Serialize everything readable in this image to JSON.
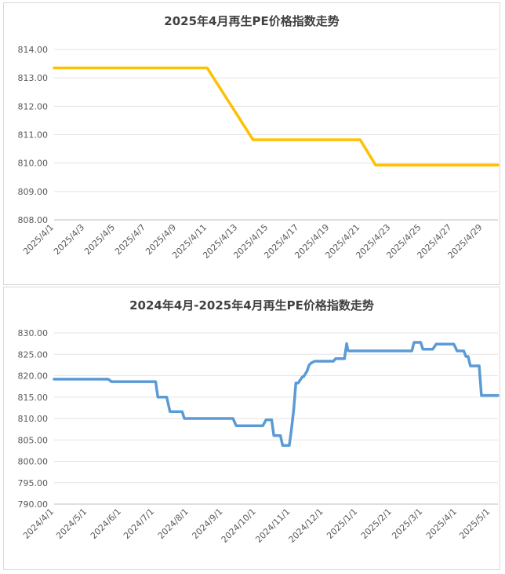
{
  "chart_data": [
    {
      "type": "line",
      "title": "2025年4月再生PE价格指数走势",
      "xlabel": "",
      "ylabel": "",
      "ylim": [
        808,
        814
      ],
      "yticks": [
        "808.00",
        "809.00",
        "810.00",
        "811.00",
        "812.00",
        "813.00",
        "814.00"
      ],
      "xtick_labels": [
        "2025/4/1",
        "2025/4/3",
        "2025/4/5",
        "2025/4/7",
        "2025/4/9",
        "2025/4/11",
        "2025/4/13",
        "2025/4/15",
        "2025/4/17",
        "2025/4/19",
        "2025/4/21",
        "2025/4/23",
        "2025/4/25",
        "2025/4/27",
        "2025/4/29"
      ],
      "x": [
        "2025/4/1",
        "2025/4/11",
        "2025/4/14",
        "2025/4/21",
        "2025/4/22",
        "2025/4/30"
      ],
      "series": [
        {
          "values": [
            813.35,
            813.35,
            810.82,
            810.82,
            809.93,
            809.93
          ]
        }
      ],
      "color": "#FFC000",
      "grid": true,
      "legend": "none"
    },
    {
      "type": "line",
      "title": "2024年4月-2025年4月再生PE价格指数走势",
      "xlabel": "",
      "ylabel": "",
      "ylim": [
        790,
        830
      ],
      "yticks": [
        "790.00",
        "795.00",
        "800.00",
        "805.00",
        "810.00",
        "815.00",
        "820.00",
        "825.00",
        "830.00"
      ],
      "xtick_labels": [
        "2024/4/1",
        "2024/5/1",
        "2024/6/1",
        "2024/7/1",
        "2024/8/1",
        "2024/9/1",
        "2024/10/1",
        "2024/11/1",
        "2024/12/1",
        "2025/1/1",
        "2025/2/1",
        "2025/3/1",
        "2025/4/1",
        "2025/5/1"
      ],
      "x": [
        "2024/4/1",
        "2024/5/20",
        "2024/5/23",
        "2024/7/2",
        "2024/7/4",
        "2024/7/12",
        "2024/7/15",
        "2024/7/26",
        "2024/7/28",
        "2024/9/10",
        "2024/9/13",
        "2024/10/7",
        "2024/10/10",
        "2024/10/15",
        "2024/10/17",
        "2024/10/23",
        "2024/10/25",
        "2024/10/31",
        "2024/11/2",
        "2024/11/4",
        "2024/11/6",
        "2024/11/8",
        "2024/11/12",
        "2024/11/13",
        "2024/11/16",
        "2024/11/18",
        "2024/11/20",
        "2024/11/23",
        "2024/11/26",
        "2024/12/10",
        "2024/12/12",
        "2024/12/20",
        "2024/12/22",
        "2024/12/23",
        "2024/12/24",
        "2025/2/19",
        "2025/2/21",
        "2025/2/27",
        "2025/3/1",
        "2025/3/10",
        "2025/3/13",
        "2025/3/29",
        "2025/4/1",
        "2025/4/7",
        "2025/4/9",
        "2025/4/11",
        "2025/4/13",
        "2025/4/21",
        "2025/4/23",
        "2025/5/8"
      ],
      "series": [
        {
          "values": [
            819.2,
            819.2,
            818.6,
            818.6,
            815.0,
            815.0,
            811.6,
            811.6,
            810.0,
            810.0,
            808.3,
            808.3,
            809.7,
            809.7,
            806.0,
            806.0,
            803.7,
            803.7,
            807.5,
            812.0,
            818.3,
            818.3,
            819.8,
            819.8,
            821.0,
            822.5,
            823.0,
            823.4,
            823.4,
            823.4,
            824.0,
            824.0,
            827.5,
            826.0,
            825.8,
            825.8,
            827.8,
            827.8,
            826.2,
            826.2,
            827.4,
            827.4,
            825.8,
            825.8,
            824.5,
            824.5,
            822.3,
            822.3,
            815.4,
            815.4
          ]
        }
      ],
      "color": "#5B9BD5",
      "grid": true,
      "legend": "none"
    }
  ]
}
